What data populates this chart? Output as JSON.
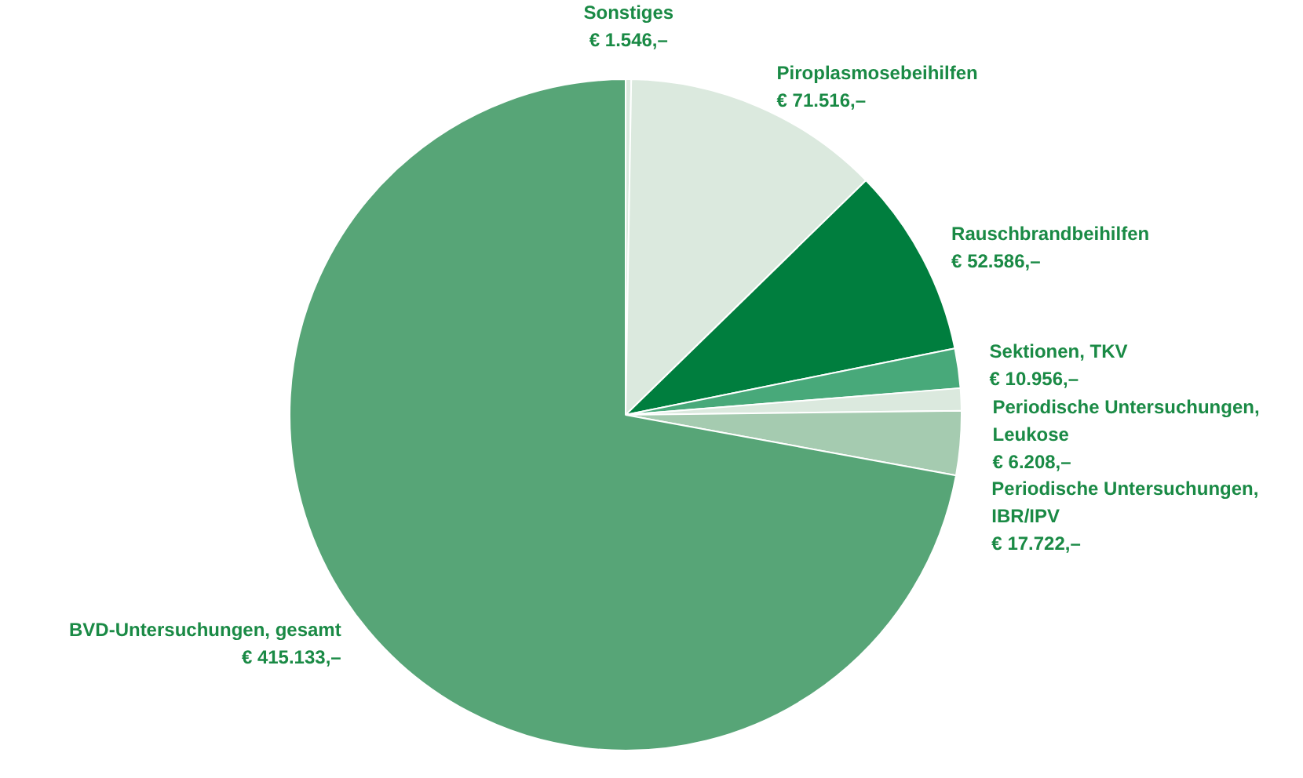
{
  "chart_data": {
    "type": "pie",
    "categories": [
      "Sonstiges",
      "Piroplasmosebeihilfen",
      "Rauschbrandbeihilfen",
      "Sektionen, TKV",
      "Periodische Untersuchungen, Leukose",
      "Periodische Untersuchungen, IBR/IPV",
      "BVD-Untersuchungen, gesamt"
    ],
    "values": [
      1546,
      71516,
      52586,
      10956,
      6208,
      17722,
      415133
    ],
    "value_labels": [
      "€ 1.546,–",
      "€ 71.516,–",
      "€ 52.586,–",
      "€ 10.956,–",
      "€ 6.208,–",
      "€ 17.722,–",
      "€ 415.133,–"
    ],
    "colors": [
      "#dbe9de",
      "#dbe9de",
      "#007e3e",
      "#48a97a",
      "#dbe9de",
      "#a5cbb0",
      "#57a577"
    ]
  }
}
